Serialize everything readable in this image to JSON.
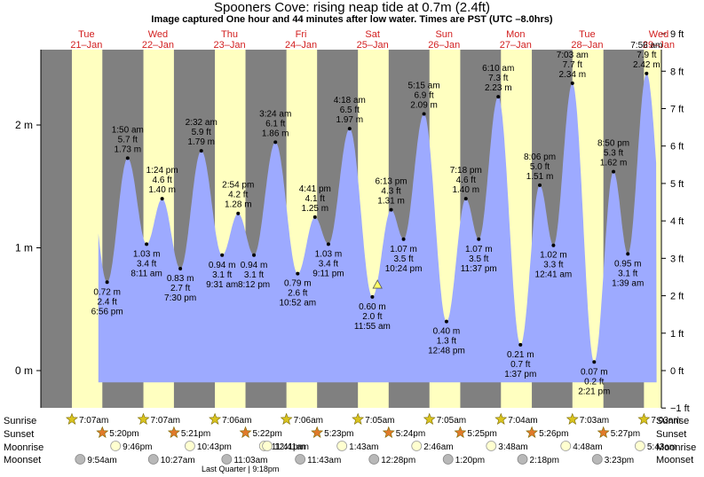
{
  "header": {
    "title": "Spooners Cove: rising  neap tide at 0.7m (2.4ft)",
    "subtitle": "Image captured One hour and 44 minutes after low water. Times are PST (UTC –8.0hrs)"
  },
  "days": [
    {
      "name": "Tue",
      "date": "21–Jan"
    },
    {
      "name": "Wed",
      "date": "22–Jan"
    },
    {
      "name": "Thu",
      "date": "23–Jan"
    },
    {
      "name": "Fri",
      "date": "24–Jan"
    },
    {
      "name": "Sat",
      "date": "25–Jan"
    },
    {
      "name": "Sun",
      "date": "26–Jan"
    },
    {
      "name": "Mon",
      "date": "27–Jan"
    },
    {
      "name": "Tue",
      "date": "28–Jan"
    },
    {
      "name": "Wed",
      "date": "29–Jan"
    }
  ],
  "colors": {
    "night": "#808080",
    "day": "#ffffc0",
    "tide_fill": "#9daaff",
    "day_label": "#d21f1f",
    "outside": "#ffffff"
  },
  "chart_data": {
    "type": "area",
    "x_unit": "hours since 21-Jan 00:00",
    "ylabel_left_unit": "m",
    "ylabel_right_unit": "ft",
    "ylim_m": [
      -0.12,
      2.82
    ],
    "yticks_left": [
      "0 m",
      "1 m",
      "2 m"
    ],
    "yticks_left_values": [
      0,
      1,
      2
    ],
    "yticks_right": [
      "−1 ft",
      "0 ft",
      "1 ft",
      "2 ft",
      "3 ft",
      "4 ft",
      "5 ft",
      "6 ft",
      "7 ft",
      "8 ft",
      "9 ft"
    ],
    "yticks_right_values_ft": [
      -1,
      0,
      1,
      2,
      3,
      4,
      5,
      6,
      7,
      8,
      9
    ],
    "extremes": [
      {
        "t": 18.93,
        "h": 0.72,
        "time": "6:56 pm",
        "ft": "2.4 ft",
        "m": "0.72 m",
        "type": "low"
      },
      {
        "t": 25.83,
        "h": 1.73,
        "time": "1:50 am",
        "ft": "5.7 ft",
        "m": "1.73 m",
        "type": "high"
      },
      {
        "t": 32.18,
        "h": 1.03,
        "time": "8:11 am",
        "ft": "3.4 ft",
        "m": "1.03 m",
        "type": "low"
      },
      {
        "t": 37.4,
        "h": 1.4,
        "time": "1:24 pm",
        "ft": "4.6 ft",
        "m": "1.40 m",
        "type": "high"
      },
      {
        "t": 43.5,
        "h": 0.83,
        "time": "7:30 pm",
        "ft": "2.7 ft",
        "m": "0.83 m",
        "type": "low"
      },
      {
        "t": 50.53,
        "h": 1.79,
        "time": "2:32 am",
        "ft": "5.9 ft",
        "m": "1.79 m",
        "type": "high"
      },
      {
        "t": 57.52,
        "h": 0.94,
        "time": "9:31 am",
        "ft": "3.1 ft",
        "m": "0.94 m",
        "type": "low"
      },
      {
        "t": 62.9,
        "h": 1.28,
        "time": "2:54 pm",
        "ft": "4.2 ft",
        "m": "1.28 m",
        "type": "high"
      },
      {
        "t": 68.2,
        "h": 0.94,
        "time": "8:12 pm",
        "ft": "3.1 ft",
        "m": "0.94 m",
        "type": "low"
      },
      {
        "t": 75.4,
        "h": 1.86,
        "time": "3:24 am",
        "ft": "6.1 ft",
        "m": "1.86 m",
        "type": "high"
      },
      {
        "t": 82.87,
        "h": 0.79,
        "time": "10:52 am",
        "ft": "2.6 ft",
        "m": "0.79 m",
        "type": "low"
      },
      {
        "t": 88.68,
        "h": 1.25,
        "time": "4:41 pm",
        "ft": "4.1 ft",
        "m": "1.25 m",
        "type": "high"
      },
      {
        "t": 93.18,
        "h": 1.03,
        "time": "9:11 pm",
        "ft": "3.4 ft",
        "m": "1.03 m",
        "type": "low"
      },
      {
        "t": 100.3,
        "h": 1.97,
        "time": "4:18 am",
        "ft": "6.5 ft",
        "m": "1.97 m",
        "type": "high"
      },
      {
        "t": 107.92,
        "h": 0.6,
        "time": "11:55 am",
        "ft": "2.0 ft",
        "m": "0.60 m",
        "type": "low"
      },
      {
        "t": 114.22,
        "h": 1.31,
        "time": "6:13 pm",
        "ft": "4.3 ft",
        "m": "1.31 m",
        "type": "high"
      },
      {
        "t": 118.4,
        "h": 1.07,
        "time": "10:24 pm",
        "ft": "3.5 ft",
        "m": "1.07 m",
        "type": "low"
      },
      {
        "t": 125.25,
        "h": 2.09,
        "time": "5:15 am",
        "ft": "6.9 ft",
        "m": "2.09 m",
        "type": "high"
      },
      {
        "t": 132.8,
        "h": 0.4,
        "time": "12:48 pm",
        "ft": "1.3 ft",
        "m": "0.40 m",
        "type": "low"
      },
      {
        "t": 139.3,
        "h": 1.4,
        "time": "7:18 pm",
        "ft": "4.6 ft",
        "m": "1.40 m",
        "type": "high"
      },
      {
        "t": 143.62,
        "h": 1.07,
        "time": "11:37 pm",
        "ft": "3.5 ft",
        "m": "1.07 m",
        "type": "low"
      },
      {
        "t": 150.17,
        "h": 2.23,
        "time": "6:10 am",
        "ft": "7.3 ft",
        "m": "2.23 m",
        "type": "high"
      },
      {
        "t": 157.62,
        "h": 0.21,
        "time": "1:37 pm",
        "ft": "0.7 ft",
        "m": "0.21 m",
        "type": "low"
      },
      {
        "t": 164.1,
        "h": 1.51,
        "time": "8:06 pm",
        "ft": "5.0 ft",
        "m": "1.51 m",
        "type": "high"
      },
      {
        "t": 168.68,
        "h": 1.02,
        "time": "12:41 am",
        "ft": "3.3 ft",
        "m": "1.02 m",
        "type": "low"
      },
      {
        "t": 175.05,
        "h": 2.34,
        "time": "7:03 am",
        "ft": "7.7 ft",
        "m": "2.34 m",
        "type": "high"
      },
      {
        "t": 182.35,
        "h": 0.07,
        "time": "2:21 pm",
        "ft": "0.2 ft",
        "m": "0.07 m",
        "type": "low"
      },
      {
        "t": 188.83,
        "h": 1.62,
        "time": "8:50 pm",
        "ft": "5.3 ft",
        "m": "1.62 m",
        "type": "high"
      },
      {
        "t": 193.65,
        "h": 0.95,
        "time": "1:39 am",
        "ft": "3.1 ft",
        "m": "0.95 m",
        "type": "low"
      },
      {
        "t": 199.93,
        "h": 2.42,
        "time": "7:56 am",
        "ft": "7.9 ft",
        "m": "2.42 m",
        "type": "high"
      }
    ],
    "current_marker": {
      "t": 109.65,
      "h": 0.7
    }
  },
  "rows": {
    "sunrise": {
      "label": "Sunrise",
      "times": [
        "7:07am",
        "7:07am",
        "7:06am",
        "7:06am",
        "7:05am",
        "7:05am",
        "7:04am",
        "7:03am",
        "7:03am"
      ]
    },
    "sunset": {
      "label": "Sunset",
      "times": [
        "5:20pm",
        "5:21pm",
        "5:22pm",
        "5:23pm",
        "5:24pm",
        "5:25pm",
        "5:26pm",
        "5:27pm"
      ]
    },
    "moonrise": {
      "label": "Moonrise",
      "times": [
        "9:46pm",
        "10:43pm",
        "11:41pm",
        "12:41am",
        "1:43am",
        "2:46am",
        "3:48am",
        "4:48am",
        "5:43am"
      ]
    },
    "moonset": {
      "label": "Moonset",
      "times": [
        "9:54am",
        "10:27am",
        "11:03am",
        "11:43am",
        "12:28pm",
        "1:20pm",
        "2:18pm",
        "3:23pm"
      ]
    }
  },
  "moon_phase_note": "Last Quarter | 9:18pm"
}
